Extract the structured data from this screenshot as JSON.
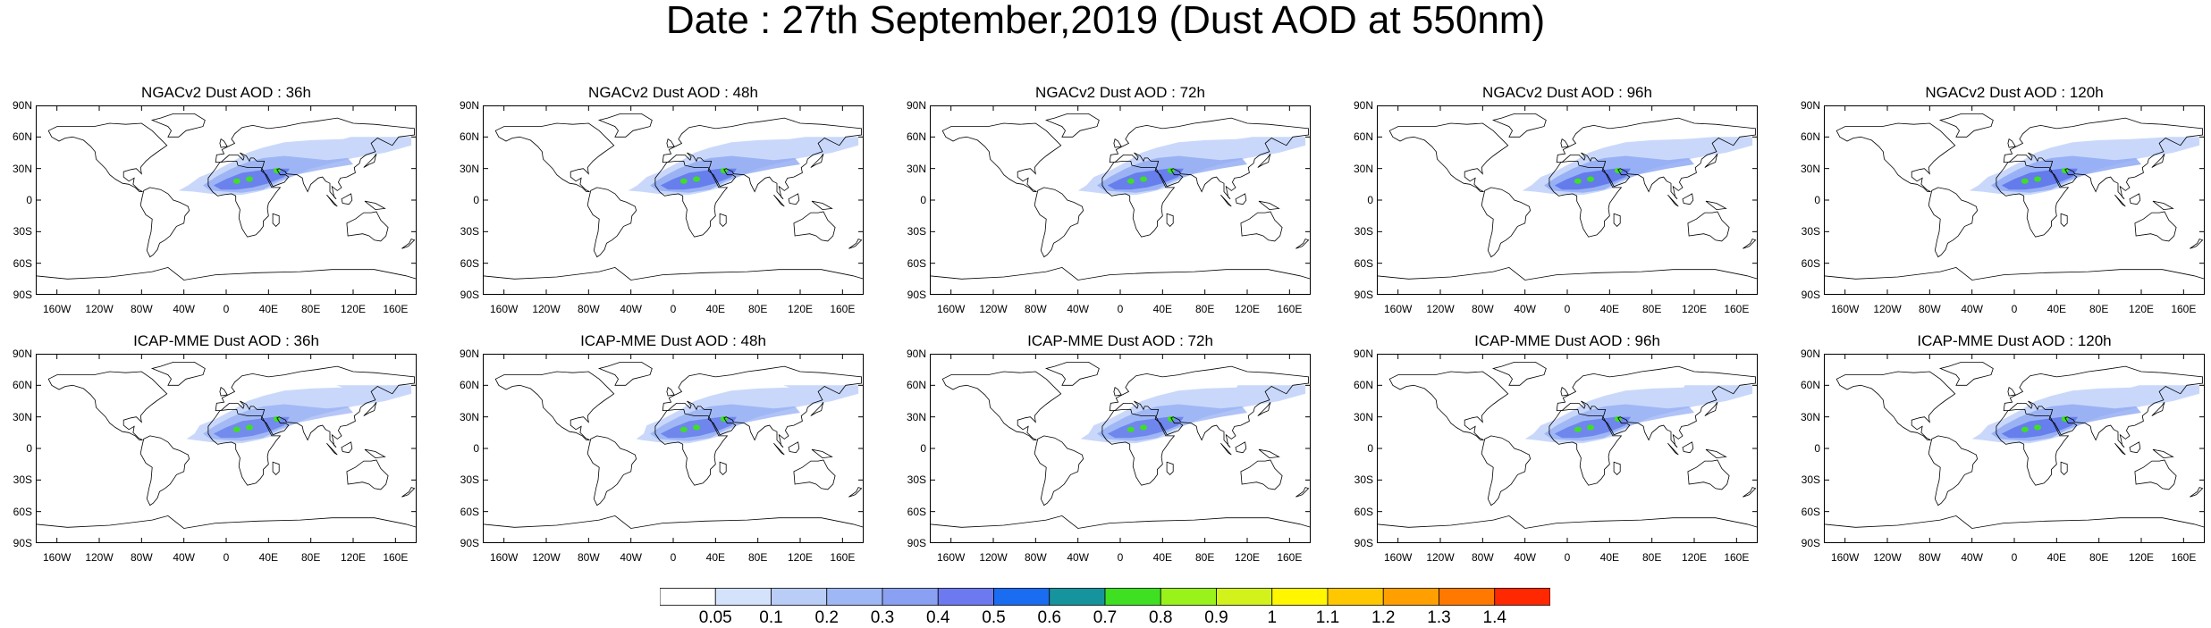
{
  "title": "Date : 27th September,2019 (Dust AOD at 550nm)",
  "rows": [
    {
      "panels": [
        {
          "title": "NGACv2 Dust AOD : 36h",
          "plume": {
            "extent": 1.0,
            "core": 0.75,
            "asia": 0.7,
            "atlantic": 0.9
          }
        },
        {
          "title": "NGACv2 Dust AOD : 48h",
          "plume": {
            "extent": 1.05,
            "core": 0.8,
            "asia": 0.75,
            "atlantic": 0.85
          }
        },
        {
          "title": "NGACv2 Dust AOD : 72h",
          "plume": {
            "extent": 1.05,
            "core": 0.8,
            "asia": 0.75,
            "atlantic": 0.8
          }
        },
        {
          "title": "NGACv2 Dust AOD : 96h",
          "plume": {
            "extent": 1.1,
            "core": 0.85,
            "asia": 0.85,
            "atlantic": 0.85
          }
        },
        {
          "title": "NGACv2 Dust AOD : 120h",
          "plume": {
            "extent": 1.15,
            "core": 0.85,
            "asia": 0.9,
            "atlantic": 0.85
          }
        }
      ]
    },
    {
      "panels": [
        {
          "title": "ICAP-MME Dust AOD : 36h",
          "plume": {
            "extent": 0.95,
            "core": 0.65,
            "asia": 0.6,
            "atlantic": 0.75
          }
        },
        {
          "title": "ICAP-MME Dust AOD : 48h",
          "plume": {
            "extent": 0.95,
            "core": 0.7,
            "asia": 0.6,
            "atlantic": 0.7
          }
        },
        {
          "title": "ICAP-MME Dust AOD : 72h",
          "plume": {
            "extent": 1.0,
            "core": 0.7,
            "asia": 0.65,
            "atlantic": 0.75
          }
        },
        {
          "title": "ICAP-MME Dust AOD : 96h",
          "plume": {
            "extent": 1.0,
            "core": 0.7,
            "asia": 0.65,
            "atlantic": 0.8
          }
        },
        {
          "title": "ICAP-MME Dust AOD : 120h",
          "plume": {
            "extent": 1.05,
            "core": 0.8,
            "asia": 0.7,
            "atlantic": 0.8
          }
        }
      ]
    }
  ],
  "lat_ticks": [
    "90N",
    "60N",
    "30N",
    "0",
    "30S",
    "60S",
    "90S"
  ],
  "lon_ticks": [
    "160W",
    "120W",
    "80W",
    "40W",
    "0",
    "40E",
    "80E",
    "120E",
    "160E"
  ],
  "colorbar": {
    "labels": [
      "0.05",
      "0.1",
      "0.2",
      "0.3",
      "0.4",
      "0.5",
      "0.6",
      "0.7",
      "0.8",
      "0.9",
      "1",
      "1.1",
      "1.2",
      "1.3",
      "1.4"
    ],
    "colors": [
      "#ffffff",
      "#d4e2fb",
      "#b9cdf7",
      "#9fb7f5",
      "#8aa0f2",
      "#6d79ee",
      "#1a6cf0",
      "#16949e",
      "#3ee021",
      "#9af21b",
      "#d3f21c",
      "#fff600",
      "#ffc700",
      "#ff9f00",
      "#ff7900",
      "#ff2800"
    ]
  },
  "colors": {
    "coast": "#000000",
    "plume_light": "#c6d6fa",
    "plume_mid": "#8fa9f3",
    "plume_core": "#5a72ea",
    "hotspot": "#3ee021"
  }
}
